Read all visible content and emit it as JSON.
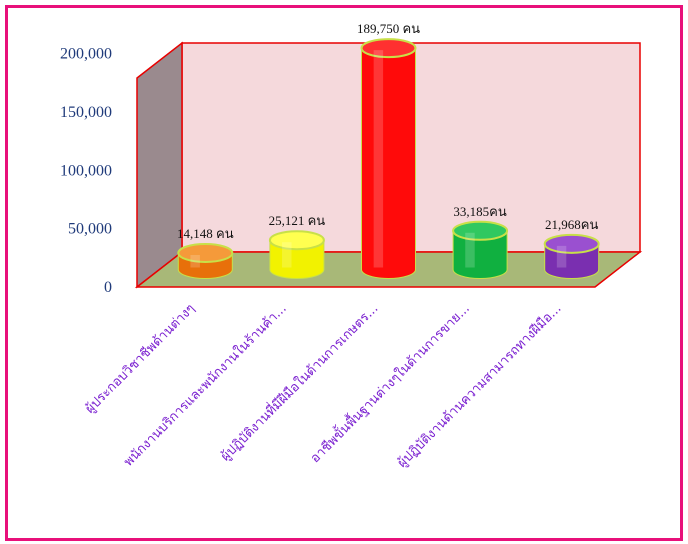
{
  "chart_data": {
    "type": "bar",
    "title": "",
    "xlabel": "",
    "ylabel": "",
    "ylim": [
      0,
      200000
    ],
    "yticks": [
      "0",
      "50,000",
      "100,000",
      "150,000",
      "200,000"
    ],
    "ytick_values": [
      0,
      50000,
      100000,
      150000,
      200000
    ],
    "categories": [
      "ผู้ประกอบวิชาชีพด้านต่างๆ",
      "พนักงานบริการและพนักงานในร้านค้า...",
      "ผู้ปฏิบัติงานที่มีฝีมือในด้านการเกษตร...",
      "อาชีพขั้นพื้นฐานต่างๆในด้านการขาย...",
      "ผู้ปฏิบัติงานด้านความสามารถทางฝีมือ..."
    ],
    "values": [
      14148,
      25121,
      189750,
      33185,
      21968
    ],
    "data_labels": [
      "14,148 คน",
      "25,121 คน",
      "189,750 คน",
      "33,185คน",
      "21,968คน"
    ],
    "bar_colors": [
      "#e8700a",
      "#f2f200",
      "#ff0a0a",
      "#10b040",
      "#7a2fb0"
    ],
    "bar_top_colors": [
      "#f59a3a",
      "#ffff50",
      "#ff3030",
      "#30c860",
      "#9a50d0"
    ],
    "grid": false,
    "legend": "none"
  },
  "colors": {
    "frame": "#e8107a",
    "back_wall": "#f5d9dc",
    "floor": "#a8b878",
    "side_wall": "#9a8a8e",
    "wall_edge": "#e80000",
    "bar_rim": "#c8e048",
    "tick_text": "#1f3a7a",
    "category_text": "#7a1fd0"
  }
}
